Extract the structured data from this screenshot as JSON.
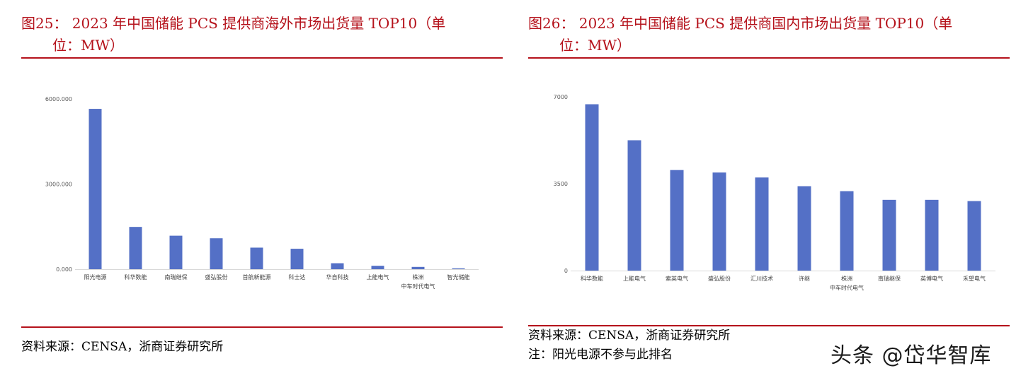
{
  "watermark": "头条 @岱华智库",
  "chart_data": [
    {
      "type": "bar",
      "title_line1": "图25：  2023 年中国储能 PCS 提供商海外市场出货量 TOP10（单",
      "title_line2": "位：MW）",
      "categories": [
        "阳光电源",
        "科华数能",
        "南瑞继保",
        "盛弘股份",
        "首航新能源",
        "科士达",
        "华自科技",
        "上能电气",
        "株洲\n中车时代电气",
        "智光储能"
      ],
      "values": [
        5650,
        1490,
        1180,
        1090,
        760,
        720,
        210,
        120,
        80,
        30
      ],
      "yticks": [
        "0.000",
        "3000.000",
        "6000.000"
      ],
      "ylim": [
        0,
        6000
      ],
      "color": "#5470c6",
      "source": "资料来源：CENSA，浙商证券研究所"
    },
    {
      "type": "bar",
      "title_line1": "图26：  2023 年中国储能 PCS 提供商国内市场出货量 TOP10（单",
      "title_line2": "位：MW）",
      "categories": [
        "科华数能",
        "上能电气",
        "索英电气",
        "盛弘股份",
        "汇川技术",
        "许继",
        "株洲\n中车时代电气",
        "南瑞继保",
        "英博电气",
        "禾望电气"
      ],
      "values": [
        6700,
        5250,
        4050,
        3950,
        3750,
        3400,
        3200,
        2850,
        2850,
        2800
      ],
      "yticks": [
        "0",
        "3500",
        "7000"
      ],
      "ylim": [
        0,
        7000
      ],
      "color": "#5470c6",
      "source": "资料来源：CENSA，浙商证券研究所",
      "note": "注：阳光电源不参与此排名"
    }
  ]
}
